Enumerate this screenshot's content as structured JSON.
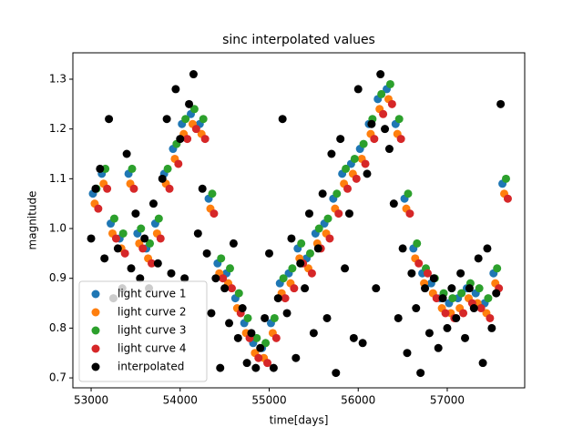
{
  "chart_data": {
    "type": "scatter",
    "title": "sinc interpolated values",
    "xlabel": "time[days]",
    "ylabel": "magnitude",
    "xlim": [
      52795,
      57870
    ],
    "ylim": [
      0.68,
      1.353
    ],
    "xticks": [
      53000,
      54000,
      55000,
      56000,
      57000
    ],
    "yticks": [
      0.7,
      0.8,
      0.9,
      {
        "value": 1,
        "label": "1.0"
      },
      1.1,
      1.2,
      1.3
    ],
    "grid": false,
    "legend": "lower left",
    "series": [
      {
        "name": "light curve 1",
        "color": "#1f77b4",
        "x": [
          53020,
          53120,
          53220,
          53320,
          53420,
          53520,
          53620,
          53720,
          53820,
          53920,
          54020,
          54120,
          54220,
          54320,
          54420,
          54520,
          54620,
          54720,
          54820,
          54920,
          55020,
          55120,
          55220,
          55320,
          55420,
          55520,
          55620,
          55720,
          55820,
          55920,
          56020,
          56120,
          56220,
          56320,
          56420,
          56520,
          56620,
          56720,
          56820,
          56920,
          57020,
          57120,
          57220,
          57320,
          57420,
          57520,
          57620
        ],
        "values": [
          1.07,
          1.11,
          1.01,
          0.98,
          1.11,
          0.99,
          0.96,
          1.01,
          1.11,
          1.16,
          1.21,
          1.23,
          1.21,
          1.06,
          0.93,
          0.91,
          0.86,
          0.81,
          0.77,
          0.76,
          0.81,
          0.89,
          0.91,
          0.96,
          0.94,
          0.99,
          1.01,
          1.06,
          1.11,
          1.13,
          1.16,
          1.21,
          1.26,
          1.28,
          1.21,
          1.06,
          0.96,
          0.91,
          0.89,
          0.86,
          0.85,
          0.86,
          0.88,
          0.87,
          0.85,
          0.91,
          1.09
        ]
      },
      {
        "name": "light curve 2",
        "color": "#ff7f0e",
        "x": [
          53040,
          53140,
          53240,
          53340,
          53440,
          53540,
          53640,
          53740,
          53840,
          53940,
          54040,
          54140,
          54240,
          54340,
          54440,
          54540,
          54640,
          54740,
          54840,
          54940,
          55040,
          55140,
          55240,
          55340,
          55440,
          55540,
          55640,
          55740,
          55840,
          55940,
          56040,
          56140,
          56240,
          56340,
          56440,
          56540,
          56640,
          56740,
          56840,
          56940,
          57040,
          57140,
          57240,
          57340,
          57440,
          57540,
          57640
        ],
        "values": [
          1.05,
          1.09,
          0.99,
          0.96,
          1.09,
          0.97,
          0.94,
          0.99,
          1.09,
          1.14,
          1.19,
          1.21,
          1.19,
          1.04,
          0.91,
          0.89,
          0.84,
          0.79,
          0.75,
          0.74,
          0.79,
          0.87,
          0.89,
          0.94,
          0.92,
          0.97,
          0.99,
          1.04,
          1.09,
          1.11,
          1.14,
          1.19,
          1.24,
          1.26,
          1.19,
          1.04,
          0.94,
          0.89,
          0.87,
          0.84,
          0.83,
          0.84,
          0.86,
          0.85,
          0.83,
          0.89,
          1.07
        ]
      },
      {
        "name": "light curve 3",
        "color": "#2ca02c",
        "x": [
          53060,
          53160,
          53260,
          53360,
          53460,
          53560,
          53660,
          53760,
          53860,
          53960,
          54060,
          54160,
          54260,
          54360,
          54460,
          54560,
          54660,
          54760,
          54860,
          54960,
          55060,
          55160,
          55260,
          55360,
          55460,
          55560,
          55660,
          55760,
          55860,
          55960,
          56060,
          56160,
          56260,
          56360,
          56460,
          56560,
          56660,
          56760,
          56860,
          56960,
          57060,
          57160,
          57260,
          57360,
          57460,
          57560,
          57660
        ],
        "values": [
          1.08,
          1.12,
          1.02,
          0.99,
          1.12,
          1.0,
          0.97,
          1.02,
          1.12,
          1.17,
          1.22,
          1.24,
          1.22,
          1.07,
          0.94,
          0.92,
          0.87,
          0.82,
          0.78,
          0.77,
          0.82,
          0.9,
          0.92,
          0.97,
          0.95,
          1.0,
          1.02,
          1.07,
          1.12,
          1.14,
          1.17,
          1.22,
          1.27,
          1.29,
          1.22,
          1.07,
          0.97,
          0.92,
          0.9,
          0.87,
          0.86,
          0.87,
          0.89,
          0.88,
          0.86,
          0.92,
          1.1
        ]
      },
      {
        "name": "light curve 4",
        "color": "#d62728",
        "x": [
          53080,
          53180,
          53280,
          53380,
          53480,
          53580,
          53680,
          53780,
          53880,
          53980,
          54080,
          54180,
          54280,
          54380,
          54480,
          54580,
          54680,
          54780,
          54880,
          54980,
          55080,
          55180,
          55280,
          55380,
          55480,
          55580,
          55680,
          55780,
          55880,
          55980,
          56080,
          56180,
          56280,
          56380,
          56480,
          56580,
          56680,
          56780,
          56880,
          56980,
          57080,
          57180,
          57280,
          57380,
          57480,
          57580,
          57680
        ],
        "values": [
          1.04,
          1.08,
          0.98,
          0.95,
          1.08,
          0.96,
          0.93,
          0.98,
          1.08,
          1.13,
          1.18,
          1.2,
          1.18,
          1.03,
          0.9,
          0.88,
          0.83,
          0.78,
          0.74,
          0.73,
          0.78,
          0.86,
          0.88,
          0.93,
          0.91,
          0.96,
          0.98,
          1.03,
          1.08,
          1.1,
          1.13,
          1.18,
          1.23,
          1.25,
          1.18,
          1.03,
          0.93,
          0.91,
          0.86,
          0.83,
          0.82,
          0.83,
          0.85,
          0.84,
          0.82,
          0.88,
          1.06
        ]
      },
      {
        "name": "interpolated",
        "color": "#000000",
        "x": [
          53000,
          53050,
          53100,
          53150,
          53200,
          53250,
          53300,
          53350,
          53400,
          53450,
          53500,
          53550,
          53600,
          53650,
          53700,
          53750,
          53800,
          53850,
          53900,
          53950,
          54000,
          54050,
          54100,
          54150,
          54200,
          54250,
          54300,
          54350,
          54400,
          54450,
          54500,
          54550,
          54600,
          54650,
          54700,
          54750,
          54800,
          54850,
          54900,
          54950,
          55000,
          55050,
          55100,
          55150,
          55200,
          55250,
          55300,
          55350,
          55400,
          55450,
          55500,
          55550,
          55600,
          55650,
          55700,
          55750,
          55800,
          55850,
          55900,
          55950,
          56000,
          56050,
          56100,
          56150,
          56200,
          56250,
          56300,
          56350,
          56400,
          56450,
          56500,
          56550,
          56600,
          56650,
          56700,
          56750,
          56800,
          56850,
          56900,
          56950,
          57000,
          57050,
          57100,
          57150,
          57200,
          57250,
          57300,
          57350,
          57400,
          57450,
          57500,
          57550,
          57600
        ],
        "values": [
          0.98,
          1.08,
          1.12,
          0.94,
          1.22,
          0.86,
          0.96,
          0.88,
          1.15,
          0.92,
          1.03,
          0.9,
          0.98,
          0.88,
          1.05,
          0.93,
          1.1,
          1.22,
          0.91,
          1.28,
          1.18,
          0.9,
          1.25,
          1.31,
          0.99,
          1.08,
          0.95,
          0.83,
          0.9,
          0.72,
          0.88,
          0.81,
          0.97,
          0.78,
          0.84,
          0.73,
          0.79,
          0.72,
          0.76,
          0.82,
          0.95,
          0.72,
          0.86,
          1.22,
          0.83,
          0.98,
          0.74,
          0.93,
          0.88,
          1.03,
          0.79,
          0.96,
          1.07,
          0.82,
          1.15,
          0.71,
          1.18,
          0.92,
          1.03,
          0.78,
          1.28,
          0.77,
          1.11,
          1.21,
          0.88,
          1.31,
          1.2,
          1.16,
          1.05,
          0.82,
          0.96,
          0.75,
          0.91,
          0.84,
          0.71,
          0.88,
          0.79,
          0.9,
          0.76,
          0.86,
          0.8,
          0.88,
          0.82,
          0.91,
          0.78,
          0.88,
          0.84,
          0.94,
          0.73,
          0.96,
          0.8,
          0.87,
          1.25
        ]
      }
    ]
  }
}
